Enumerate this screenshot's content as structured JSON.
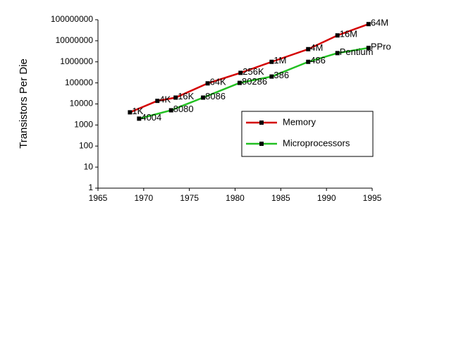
{
  "chart_data": {
    "type": "line",
    "y_label": "Transistors Per Die",
    "log_y": true,
    "xlim": [
      1965,
      1995
    ],
    "xticks": [
      1965,
      1970,
      1975,
      1980,
      1985,
      1990,
      1995
    ],
    "ylim": [
      1,
      100000000
    ],
    "yticks": [
      1,
      10,
      100,
      1000,
      10000,
      100000,
      1000000,
      10000000,
      100000000
    ],
    "legend": "center-right",
    "series": [
      {
        "name": "Memory",
        "color": "#d40000",
        "x": [
          1968.5,
          1971.5,
          1973.5,
          1977,
          1980.6,
          1984,
          1988,
          1991.2,
          1994.6
        ],
        "values": [
          4000,
          14000,
          20000,
          95000,
          300000,
          1000000,
          4000000,
          18000000,
          62000000
        ],
        "point_labels": [
          "1K",
          "4K",
          "16K",
          "64K",
          "256K",
          "1M",
          "4M",
          "16M",
          "64M"
        ]
      },
      {
        "name": "Microprocessors",
        "color": "#22c022",
        "x": [
          1969.5,
          1973,
          1976.5,
          1980.5,
          1984,
          1988,
          1991.2,
          1994.6
        ],
        "values": [
          2000,
          5000,
          20000,
          100000,
          200000,
          1000000,
          2600000,
          4600000
        ],
        "point_labels": [
          "4004",
          "8080",
          "8086",
          "80286",
          "386",
          "486",
          "Pentium",
          "PPro"
        ]
      }
    ]
  }
}
